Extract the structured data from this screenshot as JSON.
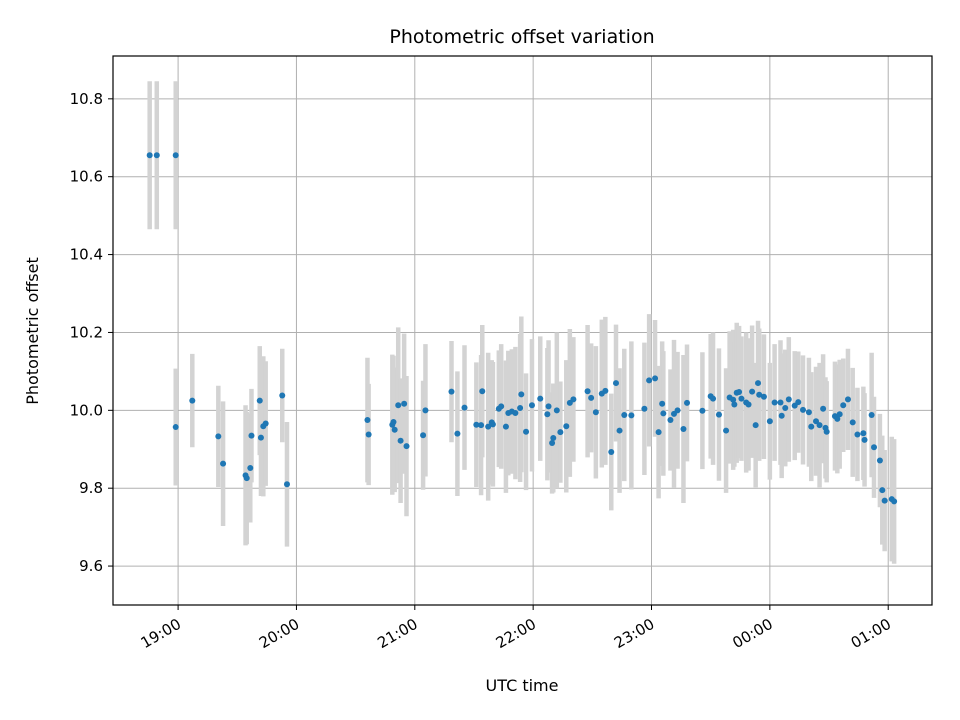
{
  "chart_data": {
    "type": "scatter",
    "title": "Photometric offset variation",
    "xlabel": "UTC time",
    "ylabel": "Photometric offset",
    "x_unit": "hours",
    "xlim": [
      18.45,
      25.37
    ],
    "ylim": [
      9.5,
      10.91
    ],
    "grid": true,
    "x_ticks": [
      {
        "value": 19,
        "label": "19:00"
      },
      {
        "value": 20,
        "label": "20:00"
      },
      {
        "value": 21,
        "label": "21:00"
      },
      {
        "value": 22,
        "label": "22:00"
      },
      {
        "value": 23,
        "label": "23:00"
      },
      {
        "value": 24,
        "label": "00:00"
      },
      {
        "value": 25,
        "label": "01:00"
      }
    ],
    "y_ticks": [
      {
        "value": 9.6,
        "label": "9.6"
      },
      {
        "value": 9.8,
        "label": "9.8"
      },
      {
        "value": 10.0,
        "label": "10.0"
      },
      {
        "value": 10.2,
        "label": "10.2"
      },
      {
        "value": 10.4,
        "label": "10.4"
      },
      {
        "value": 10.6,
        "label": "10.6"
      },
      {
        "value": 10.8,
        "label": "10.8"
      }
    ],
    "colors": {
      "point": "#1f77b4",
      "errorbar": "#d3d3d3",
      "grid": "#b0b0b0"
    },
    "points": [
      [
        18.76,
        10.655,
        0.19
      ],
      [
        18.82,
        10.655,
        0.19
      ],
      [
        18.98,
        10.655,
        0.19
      ],
      [
        18.98,
        9.957,
        0.15
      ],
      [
        19.12,
        10.025,
        0.12
      ],
      [
        19.34,
        9.933,
        0.13
      ],
      [
        19.38,
        9.863,
        0.16
      ],
      [
        19.57,
        9.833,
        0.18
      ],
      [
        19.58,
        9.826,
        0.17
      ],
      [
        19.61,
        9.852,
        0.14
      ],
      [
        19.62,
        9.935,
        0.12
      ],
      [
        19.69,
        10.025,
        0.14
      ],
      [
        19.7,
        9.93,
        0.15
      ],
      [
        19.72,
        9.959,
        0.18
      ],
      [
        19.74,
        9.966,
        0.16
      ],
      [
        19.88,
        10.038,
        0.12
      ],
      [
        19.92,
        9.81,
        0.16
      ],
      [
        20.6,
        9.975,
        0.16
      ],
      [
        20.61,
        9.938,
        0.13
      ],
      [
        20.81,
        9.963,
        0.18
      ],
      [
        20.82,
        9.97,
        0.17
      ],
      [
        20.83,
        9.95,
        0.16
      ],
      [
        20.86,
        10.013,
        0.2
      ],
      [
        20.88,
        9.922,
        0.16
      ],
      [
        20.91,
        10.017,
        0.18
      ],
      [
        20.93,
        9.908,
        0.18
      ],
      [
        21.07,
        9.936,
        0.14
      ],
      [
        21.09,
        10.0,
        0.17
      ],
      [
        21.31,
        10.048,
        0.13
      ],
      [
        21.36,
        9.94,
        0.16
      ],
      [
        21.42,
        10.007,
        0.16
      ],
      [
        21.52,
        9.963,
        0.16
      ],
      [
        21.56,
        9.962,
        0.18
      ],
      [
        21.57,
        10.049,
        0.17
      ],
      [
        21.62,
        9.958,
        0.19
      ],
      [
        21.65,
        9.969,
        0.16
      ],
      [
        21.66,
        9.964,
        0.16
      ],
      [
        21.71,
        10.004,
        0.15
      ],
      [
        21.73,
        10.01,
        0.16
      ],
      [
        21.77,
        9.958,
        0.17
      ],
      [
        21.79,
        9.993,
        0.16
      ],
      [
        21.82,
        9.997,
        0.16
      ],
      [
        21.85,
        9.993,
        0.17
      ],
      [
        21.89,
        10.006,
        0.19
      ],
      [
        21.9,
        10.041,
        0.2
      ],
      [
        21.94,
        9.945,
        0.15
      ],
      [
        21.99,
        10.013,
        0.17
      ],
      [
        22.06,
        10.03,
        0.16
      ],
      [
        22.12,
        9.99,
        0.17
      ],
      [
        22.13,
        10.01,
        0.17
      ],
      [
        22.16,
        9.916,
        0.13
      ],
      [
        22.17,
        9.929,
        0.14
      ],
      [
        22.2,
        10.0,
        0.2
      ],
      [
        22.23,
        9.944,
        0.13
      ],
      [
        22.28,
        9.959,
        0.17
      ],
      [
        22.31,
        10.019,
        0.19
      ],
      [
        22.34,
        10.028,
        0.16
      ],
      [
        22.46,
        10.049,
        0.17
      ],
      [
        22.49,
        10.032,
        0.14
      ],
      [
        22.53,
        9.995,
        0.17
      ],
      [
        22.58,
        10.043,
        0.19
      ],
      [
        22.61,
        10.05,
        0.19
      ],
      [
        22.66,
        9.893,
        0.15
      ],
      [
        22.7,
        10.07,
        0.15
      ],
      [
        22.73,
        9.948,
        0.16
      ],
      [
        22.77,
        9.988,
        0.17
      ],
      [
        22.83,
        9.987,
        0.19
      ],
      [
        22.94,
        10.004,
        0.17
      ],
      [
        22.98,
        10.077,
        0.17
      ],
      [
        23.03,
        10.082,
        0.15
      ],
      [
        23.06,
        9.944,
        0.17
      ],
      [
        23.09,
        10.017,
        0.16
      ],
      [
        23.1,
        9.992,
        0.16
      ],
      [
        23.16,
        9.975,
        0.13
      ],
      [
        23.19,
        9.991,
        0.19
      ],
      [
        23.22,
        10.0,
        0.15
      ],
      [
        23.27,
        9.952,
        0.19
      ],
      [
        23.3,
        10.019,
        0.15
      ],
      [
        23.43,
        9.999,
        0.15
      ],
      [
        23.5,
        10.036,
        0.16
      ],
      [
        23.52,
        10.03,
        0.17
      ],
      [
        23.57,
        9.989,
        0.17
      ],
      [
        23.63,
        9.948,
        0.16
      ],
      [
        23.66,
        10.033,
        0.17
      ],
      [
        23.69,
        10.027,
        0.18
      ],
      [
        23.7,
        10.015,
        0.16
      ],
      [
        23.72,
        10.045,
        0.18
      ],
      [
        23.74,
        10.047,
        0.17
      ],
      [
        23.76,
        10.03,
        0.16
      ],
      [
        23.8,
        10.02,
        0.18
      ],
      [
        23.82,
        10.015,
        0.17
      ],
      [
        23.85,
        10.048,
        0.17
      ],
      [
        23.88,
        9.962,
        0.16
      ],
      [
        23.9,
        10.07,
        0.16
      ],
      [
        23.91,
        10.04,
        0.17
      ],
      [
        23.95,
        10.035,
        0.16
      ],
      [
        24.0,
        9.972,
        0.15
      ],
      [
        24.04,
        10.02,
        0.15
      ],
      [
        24.09,
        10.02,
        0.16
      ],
      [
        24.1,
        9.986,
        0.16
      ],
      [
        24.13,
        10.006,
        0.15
      ],
      [
        24.16,
        10.028,
        0.16
      ],
      [
        24.21,
        10.012,
        0.14
      ],
      [
        24.24,
        10.021,
        0.13
      ],
      [
        24.28,
        10.001,
        0.14
      ],
      [
        24.33,
        9.995,
        0.14
      ],
      [
        24.35,
        9.958,
        0.14
      ],
      [
        24.39,
        9.972,
        0.14
      ],
      [
        24.42,
        9.962,
        0.16
      ],
      [
        24.45,
        10.004,
        0.14
      ],
      [
        24.47,
        9.955,
        0.13
      ],
      [
        24.48,
        9.945,
        0.13
      ],
      [
        24.55,
        9.985,
        0.14
      ],
      [
        24.57,
        9.978,
        0.14
      ],
      [
        24.59,
        9.99,
        0.14
      ],
      [
        24.62,
        10.013,
        0.12
      ],
      [
        24.66,
        10.028,
        0.13
      ],
      [
        24.7,
        9.969,
        0.14
      ],
      [
        24.74,
        9.938,
        0.12
      ],
      [
        24.79,
        9.941,
        0.12
      ],
      [
        24.8,
        9.924,
        0.12
      ],
      [
        24.86,
        9.988,
        0.16
      ],
      [
        24.88,
        9.905,
        0.13
      ],
      [
        24.93,
        9.871,
        0.12
      ],
      [
        24.95,
        9.795,
        0.14
      ],
      [
        24.97,
        9.768,
        0.13
      ],
      [
        25.03,
        9.772,
        0.16
      ],
      [
        25.05,
        9.766,
        0.16
      ]
    ]
  }
}
